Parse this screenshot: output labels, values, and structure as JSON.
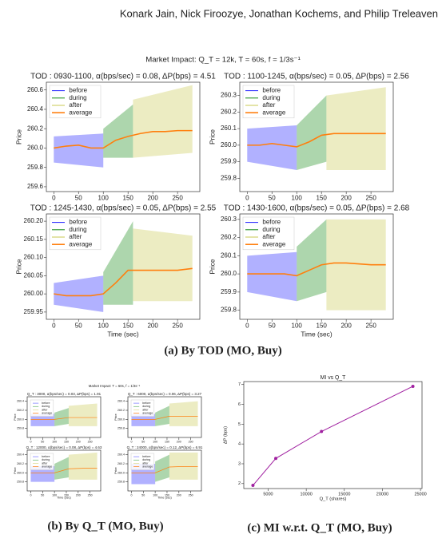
{
  "header": {
    "authors": "Konark Jain, Nick Firoozye, Jonathan Kochems, and Philip Treleaven"
  },
  "captions": [
    "(a) By TOD (MO, Buy)",
    "(b) By Q_T (MO, Buy)",
    "(c) MI w.r.t. Q_T (MO, Buy)"
  ],
  "chart_data": [
    {
      "type": "panel-grid",
      "title": "Market Impact: Q_T = 12k, T = 60s, f = 1/3s⁻¹",
      "panels": [
        {
          "type": "line",
          "title": "TOD : 0930-1100, α(bps/sec) = 0.08, ΔP(bps) = 4.51",
          "ylabel": "Price",
          "xlim": [
            -15,
            295
          ],
          "xticks": [
            0,
            50,
            100,
            150,
            200,
            250
          ],
          "ylim": [
            259.55,
            260.68
          ],
          "yticks": [
            259.6,
            259.8,
            {
              "value": 260,
              "label": "260.0"
            },
            260.2,
            260.4,
            260.6
          ],
          "series": [
            {
              "name": "before",
              "color": "#2020ff",
              "x": [
                0,
                100
              ],
              "low": [
                259.85,
                259.8
              ],
              "high": [
                260.12,
                260.15
              ]
            },
            {
              "name": "during",
              "color": "#138a13",
              "x": [
                100,
                160
              ],
              "low": [
                259.9,
                259.9
              ],
              "high": [
                260.2,
                260.45
              ]
            },
            {
              "name": "after",
              "color": "#c8c850",
              "x": [
                160,
                280
              ],
              "low": [
                259.9,
                259.95
              ],
              "high": [
                260.5,
                260.65
              ]
            },
            {
              "name": "average",
              "color": "#ff7f0e",
              "x": [
                0,
                25,
                50,
                75,
                100,
                125,
                150,
                175,
                200,
                225,
                250,
                280
              ],
              "values": [
                260.0,
                260.02,
                260.03,
                260.0,
                260.0,
                260.08,
                260.12,
                260.15,
                260.17,
                260.17,
                260.18,
                260.18
              ]
            }
          ]
        },
        {
          "type": "line",
          "title": "TOD : 1100-1245, α(bps/sec) = 0.05, ΔP(bps) = 2.56",
          "ylabel": "Price",
          "xlim": [
            -15,
            295
          ],
          "xticks": [
            0,
            50,
            100,
            150,
            200,
            250
          ],
          "ylim": [
            259.72,
            260.38
          ],
          "yticks": [
            259.8,
            259.9,
            {
              "value": 260,
              "label": "260.0"
            },
            260.1,
            260.2,
            260.3
          ],
          "series": [
            {
              "name": "before",
              "color": "#2020ff",
              "x": [
                0,
                100
              ],
              "low": [
                259.9,
                259.85
              ],
              "high": [
                260.1,
                260.12
              ]
            },
            {
              "name": "during",
              "color": "#138a13",
              "x": [
                100,
                160
              ],
              "low": [
                259.85,
                259.9
              ],
              "high": [
                260.12,
                260.3
              ]
            },
            {
              "name": "after",
              "color": "#c8c850",
              "x": [
                160,
                280
              ],
              "low": [
                259.85,
                259.85
              ],
              "high": [
                260.3,
                260.35
              ]
            },
            {
              "name": "average",
              "color": "#ff7f0e",
              "x": [
                0,
                25,
                50,
                75,
                100,
                125,
                150,
                175,
                200,
                225,
                250,
                280
              ],
              "values": [
                260.0,
                260.0,
                260.01,
                260.0,
                259.99,
                260.02,
                260.06,
                260.07,
                260.07,
                260.07,
                260.07,
                260.07
              ]
            }
          ]
        },
        {
          "type": "line",
          "title": "TOD : 1245-1430, α(bps/sec) = 0.05, ΔP(bps) = 2.55",
          "ylabel": "Price",
          "xlabel": "Time (sec)",
          "xlim": [
            -15,
            295
          ],
          "xticks": [
            0,
            50,
            100,
            150,
            200,
            250
          ],
          "ylim": [
            259.93,
            260.22
          ],
          "yticks": [
            259.95,
            {
              "value": 260,
              "label": "260.00"
            },
            260.05,
            {
              "value": 260.1,
              "label": "260.10"
            },
            260.15,
            {
              "value": 260.2,
              "label": "260.20"
            }
          ],
          "series": [
            {
              "name": "before",
              "color": "#2020ff",
              "x": [
                0,
                100
              ],
              "low": [
                259.97,
                259.95
              ],
              "high": [
                260.03,
                260.05
              ]
            },
            {
              "name": "during",
              "color": "#138a13",
              "x": [
                100,
                160
              ],
              "low": [
                259.97,
                259.97
              ],
              "high": [
                260.06,
                260.2
              ]
            },
            {
              "name": "after",
              "color": "#c8c850",
              "x": [
                160,
                280
              ],
              "low": [
                259.98,
                259.98
              ],
              "high": [
                260.18,
                260.16
              ]
            },
            {
              "name": "average",
              "color": "#ff7f0e",
              "x": [
                0,
                25,
                50,
                75,
                100,
                125,
                150,
                175,
                200,
                225,
                250,
                280
              ],
              "values": [
                260.0,
                259.995,
                259.995,
                259.995,
                260.0,
                260.03,
                260.065,
                260.065,
                260.065,
                260.065,
                260.065,
                260.07
              ]
            }
          ]
        },
        {
          "type": "line",
          "title": "TOD : 1430-1600, α(bps/sec) = 0.05, ΔP(bps) = 2.68",
          "ylabel": "Price",
          "xlabel": "Time (sec)",
          "xlim": [
            -15,
            295
          ],
          "xticks": [
            0,
            50,
            100,
            150,
            200,
            250
          ],
          "ylim": [
            259.75,
            260.33
          ],
          "yticks": [
            259.8,
            259.9,
            {
              "value": 260,
              "label": "260.0"
            },
            260.1,
            260.2,
            260.3
          ],
          "series": [
            {
              "name": "before",
              "color": "#2020ff",
              "x": [
                0,
                100
              ],
              "low": [
                259.9,
                259.85
              ],
              "high": [
                260.1,
                260.12
              ]
            },
            {
              "name": "during",
              "color": "#138a13",
              "x": [
                100,
                160
              ],
              "low": [
                259.85,
                259.9
              ],
              "high": [
                260.15,
                260.3
              ]
            },
            {
              "name": "after",
              "color": "#c8c850",
              "x": [
                160,
                280
              ],
              "low": [
                259.8,
                259.8
              ],
              "high": [
                260.3,
                260.3
              ]
            },
            {
              "name": "average",
              "color": "#ff7f0e",
              "x": [
                0,
                25,
                50,
                75,
                100,
                125,
                150,
                175,
                200,
                225,
                250,
                280
              ],
              "values": [
                260.0,
                260.0,
                260.0,
                260.0,
                259.99,
                260.02,
                260.05,
                260.06,
                260.06,
                260.055,
                260.05,
                260.05
              ]
            }
          ]
        }
      ]
    },
    {
      "type": "panel-grid",
      "title": "Market Impact: T = 60s, f = 1/3s⁻¹",
      "panels": [
        {
          "type": "line",
          "title": "Q_T : 3000, α(bps/sec) = 0.03, ΔP(bps) = 1.91",
          "ylabel": "Price",
          "xlim": [
            -15,
            295
          ],
          "xticks": [
            0,
            50,
            100,
            150,
            200,
            250
          ],
          "ylim": [
            259.6,
            260.5
          ],
          "yticks": [
            259.8,
            {
              "value": 260,
              "label": "260.0"
            },
            260.2,
            260.4
          ],
          "series": [
            {
              "name": "before",
              "color": "#2020ff",
              "x": [
                0,
                100
              ],
              "low": [
                259.85,
                259.85
              ],
              "high": [
                260.12,
                260.12
              ]
            },
            {
              "name": "during",
              "color": "#138a13",
              "x": [
                100,
                160
              ],
              "low": [
                259.85,
                259.9
              ],
              "high": [
                260.15,
                260.25
              ]
            },
            {
              "name": "after",
              "color": "#c8c850",
              "x": [
                160,
                280
              ],
              "low": [
                259.85,
                259.85
              ],
              "high": [
                260.3,
                260.35
              ]
            },
            {
              "name": "average",
              "color": "#ff7f0e",
              "x": [
                0,
                50,
                100,
                160,
                220,
                280
              ],
              "values": [
                260.0,
                260.0,
                260.0,
                260.04,
                260.04,
                260.04
              ]
            }
          ]
        },
        {
          "type": "line",
          "title": "Q_T : 6000, α(bps/sec) = 0.06, ΔP(bps) = 3.27",
          "ylabel": "Price",
          "xlim": [
            -15,
            295
          ],
          "xticks": [
            0,
            50,
            100,
            150,
            200,
            250
          ],
          "ylim": [
            259.6,
            260.5
          ],
          "yticks": [
            259.8,
            {
              "value": 260,
              "label": "260.0"
            },
            260.2,
            260.4
          ],
          "series": [
            {
              "name": "before",
              "color": "#2020ff",
              "x": [
                0,
                100
              ],
              "low": [
                259.85,
                259.85
              ],
              "high": [
                260.12,
                260.12
              ]
            },
            {
              "name": "during",
              "color": "#138a13",
              "x": [
                100,
                160
              ],
              "low": [
                259.85,
                259.9
              ],
              "high": [
                260.15,
                260.3
              ]
            },
            {
              "name": "after",
              "color": "#c8c850",
              "x": [
                160,
                280
              ],
              "low": [
                259.85,
                259.85
              ],
              "high": [
                260.35,
                260.4
              ]
            },
            {
              "name": "average",
              "color": "#ff7f0e",
              "x": [
                0,
                50,
                100,
                160,
                220,
                280
              ],
              "values": [
                260.0,
                260.0,
                260.0,
                260.07,
                260.07,
                260.07
              ]
            }
          ]
        },
        {
          "type": "line",
          "title": "Q_T : 12000, α(bps/sec) = 0.08, ΔP(bps) = 4.63",
          "ylabel": "Price",
          "xlabel": "Time (sec)",
          "xlim": [
            -15,
            295
          ],
          "xticks": [
            0,
            50,
            100,
            150,
            200,
            250
          ],
          "ylim": [
            259.6,
            260.5
          ],
          "yticks": [
            259.8,
            {
              "value": 260,
              "label": "260.0"
            },
            260.2,
            260.4
          ],
          "series": [
            {
              "name": "before",
              "color": "#2020ff",
              "x": [
                0,
                100
              ],
              "low": [
                259.8,
                259.8
              ],
              "high": [
                260.15,
                260.15
              ]
            },
            {
              "name": "during",
              "color": "#138a13",
              "x": [
                100,
                160
              ],
              "low": [
                259.85,
                259.9
              ],
              "high": [
                260.2,
                260.35
              ]
            },
            {
              "name": "after",
              "color": "#c8c850",
              "x": [
                160,
                280
              ],
              "low": [
                259.85,
                259.85
              ],
              "high": [
                260.4,
                260.45
              ]
            },
            {
              "name": "average",
              "color": "#ff7f0e",
              "x": [
                0,
                50,
                100,
                160,
                220,
                280
              ],
              "values": [
                260.0,
                260.0,
                260.0,
                260.09,
                260.1,
                260.1
              ]
            }
          ]
        },
        {
          "type": "line",
          "title": "Q_T : 24000, α(bps/sec) = 0.12, ΔP(bps) = 6.91",
          "ylabel": "Price",
          "xlabel": "Time (sec)",
          "xlim": [
            -15,
            295
          ],
          "xticks": [
            0,
            50,
            100,
            150,
            200,
            250
          ],
          "ylim": [
            259.6,
            260.5
          ],
          "yticks": [
            259.8,
            {
              "value": 260,
              "label": "260.0"
            },
            260.2,
            260.4
          ],
          "series": [
            {
              "name": "before",
              "color": "#2020ff",
              "x": [
                0,
                100
              ],
              "low": [
                259.75,
                259.75
              ],
              "high": [
                260.2,
                260.2
              ]
            },
            {
              "name": "during",
              "color": "#138a13",
              "x": [
                100,
                160
              ],
              "low": [
                259.8,
                259.9
              ],
              "high": [
                260.25,
                260.4
              ]
            },
            {
              "name": "after",
              "color": "#c8c850",
              "x": [
                160,
                280
              ],
              "low": [
                259.85,
                259.85
              ],
              "high": [
                260.45,
                260.45
              ]
            },
            {
              "name": "average",
              "color": "#ff7f0e",
              "x": [
                0,
                50,
                100,
                160,
                220,
                280
              ],
              "values": [
                260.0,
                260.0,
                260.0,
                260.13,
                260.14,
                260.14
              ]
            }
          ]
        }
      ]
    },
    {
      "type": "line",
      "title": "MI vs Q_T",
      "xlabel": "Q_T (shares)",
      "ylabel": "ΔP (bps)",
      "x": [
        3000,
        6000,
        12000,
        24000
      ],
      "values": [
        1.91,
        3.27,
        4.63,
        6.91
      ],
      "color": "#a020a0",
      "xlim": [
        1800,
        25200
      ],
      "xticks": [
        5000,
        10000,
        15000,
        20000,
        25000
      ],
      "ylim": [
        1.75,
        7.15
      ],
      "yticks": [
        2,
        3,
        4,
        5,
        6,
        7
      ]
    }
  ]
}
